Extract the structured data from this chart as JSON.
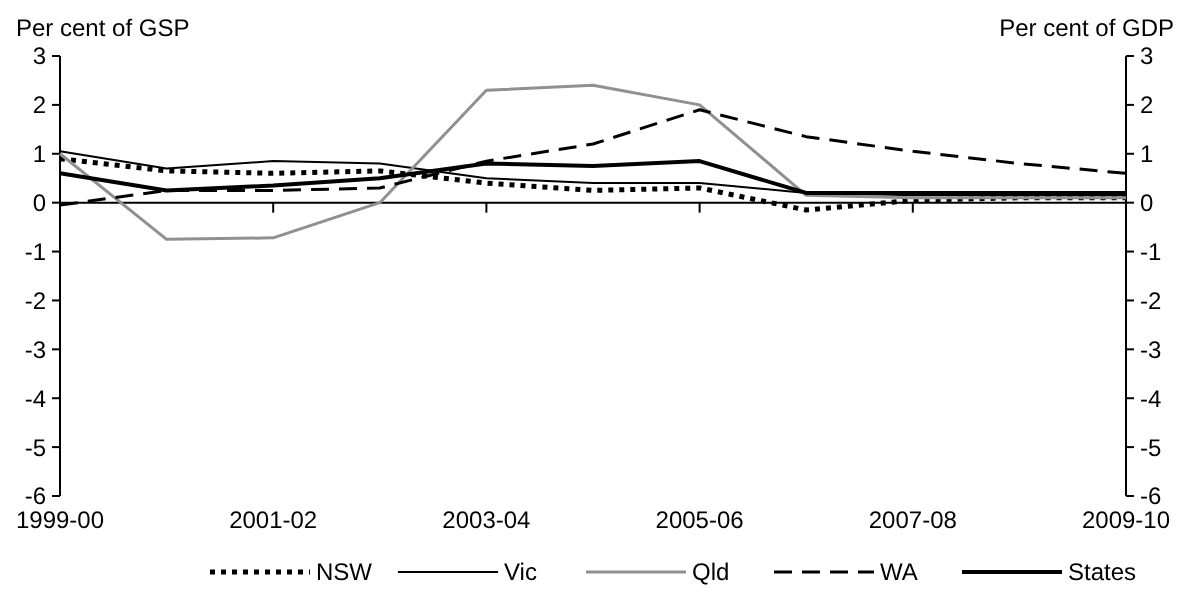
{
  "chart_data": {
    "type": "line",
    "ylabel": "Per cent of GSP",
    "y2label": "Per cent of GDP",
    "categories": [
      "1999-00",
      null,
      "2001-02",
      null,
      "2003-04",
      null,
      "2005-06",
      null,
      "2007-08",
      null,
      "2009-10"
    ],
    "ylim": [
      -6,
      3
    ],
    "yticks": [
      -6,
      -5,
      -4,
      -3,
      -2,
      -1,
      0,
      1,
      2,
      3
    ],
    "y2lim": [
      -6,
      3
    ],
    "y2ticks": [
      -6,
      -5,
      -4,
      -3,
      -2,
      -1,
      0,
      1,
      2,
      3
    ],
    "legend": "bottom",
    "series": [
      {
        "name": "NSW",
        "color": "#000000",
        "line_style": "dotted",
        "values": [
          0.9,
          0.65,
          0.6,
          0.65,
          0.4,
          0.25,
          0.3,
          -0.15,
          0.05,
          0.1,
          0.1
        ]
      },
      {
        "name": "Vic",
        "color": "#000000",
        "line_style": "solid",
        "values": [
          1.05,
          0.7,
          0.85,
          0.8,
          0.5,
          0.4,
          0.4,
          0.2,
          0.15,
          0.15,
          0.15
        ]
      },
      {
        "name": "Qld",
        "color": "#909090",
        "line_style": "solid",
        "values": [
          1.0,
          -0.75,
          -0.72,
          0.0,
          2.3,
          2.4,
          2.0,
          0.15,
          0.1,
          0.1,
          0.1
        ]
      },
      {
        "name": "WA",
        "color": "#000000",
        "line_style": "dashed",
        "values": [
          -0.05,
          0.25,
          0.25,
          0.3,
          0.85,
          1.2,
          1.9,
          1.35,
          1.05,
          0.8,
          0.6
        ]
      },
      {
        "name": "States",
        "color": "#000000",
        "line_style": "solid",
        "values": [
          0.6,
          0.25,
          0.35,
          0.5,
          0.8,
          0.75,
          0.85,
          0.2,
          0.2,
          0.2,
          0.2
        ]
      }
    ]
  }
}
